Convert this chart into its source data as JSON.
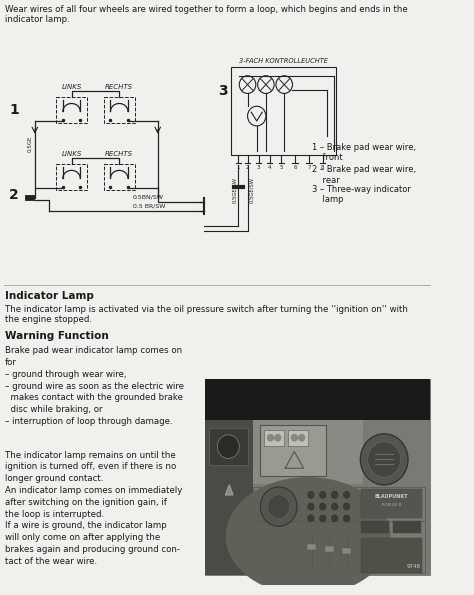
{
  "bg_color": "#f0f0ec",
  "text_color": "#1a1a1a",
  "line_color": "#222222",
  "title_text": "Wear wires of all four wheels are wired together to form a loop, which begins and ends in the\nindicator lamp.",
  "legend": [
    "1 – Brake pad wear wire,\n    front",
    "2 – Brake pad wear wire,\n    rear",
    "3 – Three-way indicator\n    lamp"
  ],
  "indicator_lamp_title": "Indicator Lamp",
  "indicator_lamp_text": "The indicator lamp is activated via the oil pressure switch after turning the ''ignition on'' with\nthe engine stopped.",
  "warning_title": "Warning Function",
  "warning_text1": "Brake pad wear indicator lamp comes on\nfor\n– ground through wear wire,\n– ground wire as soon as the electric wire\n  makes contact with the grounded brake\n  disc while braking, or\n– interruption of loop through damage.",
  "warning_text2": "The indicator lamp remains on until the\nignition is turned off, even if there is no\nlonger ground contact.\nAn indicator lamp comes on immediately\nafter switching on the ignition gain, if\nthe loop is interrupted.\nIf a wire is ground, the indicator lamp\nwill only come on after applying the\nbrakes again and producing ground con-\ntact of the wear wire."
}
